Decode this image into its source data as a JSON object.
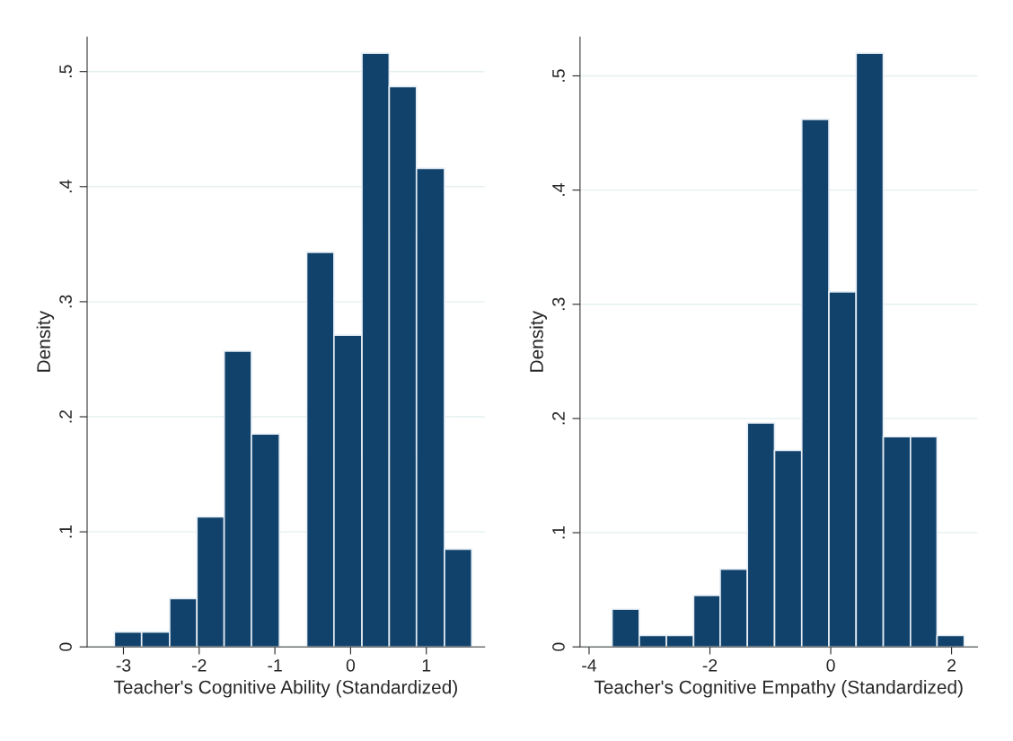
{
  "chart_data": [
    {
      "type": "histogram",
      "xlabel": "Teacher's Cognitive Ability (Standardized)",
      "ylabel": "Density",
      "bins": [
        -3.12,
        -2.76,
        -2.39,
        -2.03,
        -1.67,
        -1.31,
        -0.94,
        -0.58,
        -0.22,
        0.15,
        0.51,
        0.87,
        1.24,
        1.6
      ],
      "values": [
        0.013,
        0.013,
        0.042,
        0.113,
        0.257,
        0.185,
        0,
        0.343,
        0.271,
        0.516,
        0.487,
        0.416,
        0.085
      ],
      "color": "#11426c",
      "xlim": [
        -3.48,
        1.77
      ],
      "xticks": [
        -3,
        -2,
        -1,
        0,
        1
      ],
      "ylim": [
        0,
        0.53
      ],
      "yticks": [
        0,
        {
          "value": 0.1,
          "label": ".1"
        },
        {
          "value": 0.2,
          "label": ".2"
        },
        {
          "value": 0.3,
          "label": ".3"
        },
        {
          "value": 0.4,
          "label": ".4"
        },
        {
          "value": 0.5,
          "label": ".5"
        }
      ],
      "grid": "y"
    },
    {
      "type": "histogram",
      "xlabel": "Teacher's Cognitive Empathy (Standardized)",
      "ylabel": "Density",
      "bins": [
        -3.62,
        -3.17,
        -2.72,
        -2.27,
        -1.83,
        -1.38,
        -0.93,
        -0.48,
        -0.03,
        0.42,
        0.87,
        1.32,
        1.76,
        2.21
      ],
      "values": [
        0.033,
        0.01,
        0.01,
        0.045,
        0.068,
        0.196,
        0.172,
        0.462,
        0.311,
        0.52,
        0.184,
        0.184,
        0.01
      ],
      "color": "#11426c",
      "xlim": [
        -4.15,
        2.43
      ],
      "xticks": [
        -4,
        -2,
        0,
        2
      ],
      "ylim": [
        0,
        0.534
      ],
      "yticks": [
        0,
        {
          "value": 0.1,
          "label": ".1"
        },
        {
          "value": 0.2,
          "label": ".2"
        },
        {
          "value": 0.3,
          "label": ".3"
        },
        {
          "value": 0.4,
          "label": ".4"
        },
        {
          "value": 0.5,
          "label": ".5"
        }
      ],
      "grid": "y"
    }
  ]
}
